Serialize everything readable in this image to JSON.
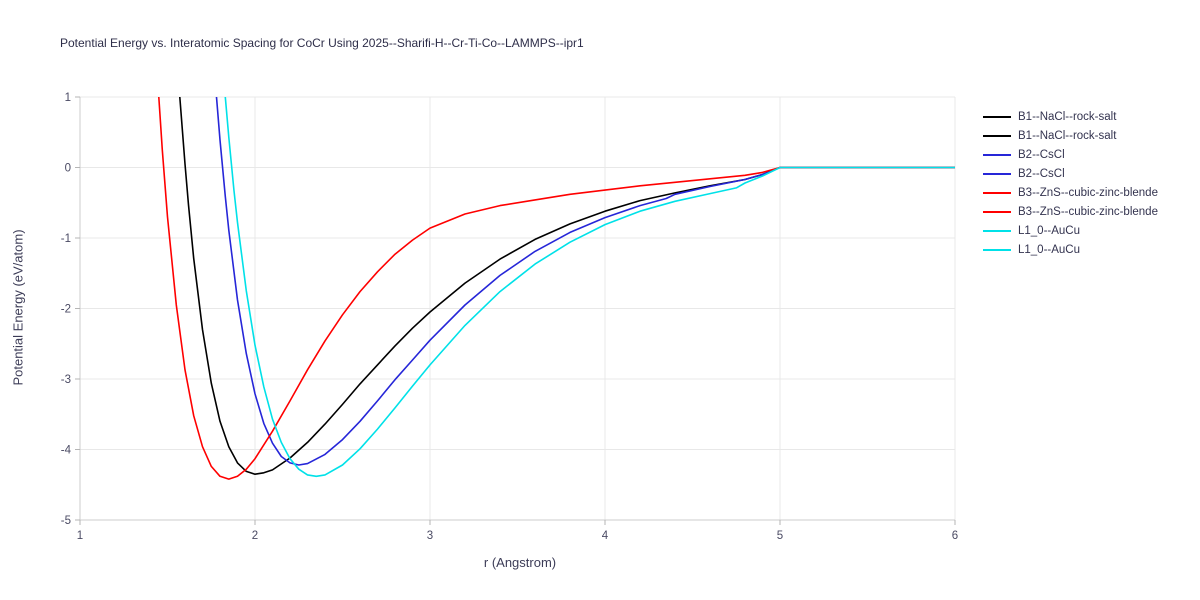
{
  "chart_data": {
    "type": "line",
    "title": "Potential Energy vs. Interatomic Spacing for CoCr Using 2025--Sharifi-H--Cr-Ti-Co--LAMMPS--ipr1",
    "xlabel": "r (Angstrom)",
    "ylabel": "Potential Energy (eV/atom)",
    "xlim": [
      1,
      6
    ],
    "ylim": [
      -5,
      1
    ],
    "xticks": [
      1,
      2,
      3,
      4,
      5,
      6
    ],
    "yticks": [
      -5,
      -4,
      -3,
      -2,
      -1,
      0,
      1
    ],
    "grid": true,
    "legend_position": "right",
    "colors": {
      "background": "#ffffff",
      "grid": "#e8e8e8",
      "axis": "#cccccc",
      "tick": "#b5b5b5",
      "tick_label": "#4a4a63",
      "title_text": "#2e2e49",
      "b1_black": "#000000",
      "b2_blue": "#2626d8",
      "b3_red": "#ff0000",
      "l10_cyan": "#00e1e8"
    },
    "series": [
      {
        "name": "B1--NaCl--rock-salt",
        "color": "#000000",
        "points": [
          [
            1.57,
            1.0
          ],
          [
            1.6,
            0.05
          ],
          [
            1.62,
            -0.53
          ],
          [
            1.65,
            -1.29
          ],
          [
            1.7,
            -2.3
          ],
          [
            1.75,
            -3.06
          ],
          [
            1.8,
            -3.6
          ],
          [
            1.85,
            -3.96
          ],
          [
            1.9,
            -4.19
          ],
          [
            1.95,
            -4.31
          ],
          [
            2.0,
            -4.35
          ],
          [
            2.05,
            -4.33
          ],
          [
            2.1,
            -4.29
          ],
          [
            2.2,
            -4.12
          ],
          [
            2.3,
            -3.9
          ],
          [
            2.4,
            -3.64
          ],
          [
            2.5,
            -3.36
          ],
          [
            2.6,
            -3.07
          ],
          [
            2.7,
            -2.8
          ],
          [
            2.8,
            -2.53
          ],
          [
            2.9,
            -2.28
          ],
          [
            3.0,
            -2.05
          ],
          [
            3.2,
            -1.64
          ],
          [
            3.4,
            -1.3
          ],
          [
            3.6,
            -1.02
          ],
          [
            3.8,
            -0.8
          ],
          [
            4.0,
            -0.62
          ],
          [
            4.2,
            -0.47
          ],
          [
            4.4,
            -0.36
          ],
          [
            4.6,
            -0.26
          ],
          [
            4.8,
            -0.17
          ],
          [
            4.9,
            -0.1
          ],
          [
            5.0,
            0.0
          ],
          [
            6.0,
            0.0
          ]
        ]
      },
      {
        "name": "B2--CsCl",
        "color": "#2626d8",
        "points": [
          [
            1.78,
            1.0
          ],
          [
            1.8,
            0.39
          ],
          [
            1.83,
            -0.41
          ],
          [
            1.85,
            -0.89
          ],
          [
            1.9,
            -1.88
          ],
          [
            1.95,
            -2.64
          ],
          [
            2.0,
            -3.21
          ],
          [
            2.05,
            -3.63
          ],
          [
            2.1,
            -3.91
          ],
          [
            2.15,
            -4.1
          ],
          [
            2.2,
            -4.19
          ],
          [
            2.25,
            -4.22
          ],
          [
            2.3,
            -4.2
          ],
          [
            2.4,
            -4.07
          ],
          [
            2.5,
            -3.86
          ],
          [
            2.6,
            -3.6
          ],
          [
            2.7,
            -3.31
          ],
          [
            2.8,
            -3.01
          ],
          [
            2.9,
            -2.73
          ],
          [
            3.0,
            -2.45
          ],
          [
            3.2,
            -1.95
          ],
          [
            3.4,
            -1.53
          ],
          [
            3.6,
            -1.19
          ],
          [
            3.8,
            -0.92
          ],
          [
            4.0,
            -0.71
          ],
          [
            4.2,
            -0.54
          ],
          [
            4.35,
            -0.44
          ],
          [
            4.4,
            -0.38
          ],
          [
            4.6,
            -0.27
          ],
          [
            4.8,
            -0.17
          ],
          [
            4.9,
            -0.1
          ],
          [
            5.0,
            0.0
          ],
          [
            6.0,
            0.0
          ]
        ]
      },
      {
        "name": "B3--ZnS--cubic-zinc-blende",
        "color": "#ff0000",
        "points": [
          [
            1.45,
            1.0
          ],
          [
            1.47,
            0.25
          ],
          [
            1.5,
            -0.7
          ],
          [
            1.55,
            -1.95
          ],
          [
            1.6,
            -2.87
          ],
          [
            1.65,
            -3.52
          ],
          [
            1.7,
            -3.96
          ],
          [
            1.75,
            -4.24
          ],
          [
            1.8,
            -4.38
          ],
          [
            1.85,
            -4.42
          ],
          [
            1.9,
            -4.38
          ],
          [
            1.95,
            -4.28
          ],
          [
            2.0,
            -4.13
          ],
          [
            2.1,
            -3.74
          ],
          [
            2.2,
            -3.31
          ],
          [
            2.3,
            -2.87
          ],
          [
            2.4,
            -2.46
          ],
          [
            2.5,
            -2.09
          ],
          [
            2.6,
            -1.76
          ],
          [
            2.7,
            -1.48
          ],
          [
            2.8,
            -1.23
          ],
          [
            2.9,
            -1.03
          ],
          [
            3.0,
            -0.86
          ],
          [
            3.2,
            -0.66
          ],
          [
            3.4,
            -0.54
          ],
          [
            3.6,
            -0.46
          ],
          [
            3.8,
            -0.38
          ],
          [
            4.0,
            -0.32
          ],
          [
            4.2,
            -0.26
          ],
          [
            4.4,
            -0.21
          ],
          [
            4.6,
            -0.16
          ],
          [
            4.8,
            -0.11
          ],
          [
            4.9,
            -0.07
          ],
          [
            5.0,
            0.0
          ],
          [
            6.0,
            0.0
          ]
        ]
      },
      {
        "name": "L1_0--AuCu",
        "color": "#00e1e8",
        "points": [
          [
            1.83,
            1.0
          ],
          [
            1.85,
            0.43
          ],
          [
            1.88,
            -0.33
          ],
          [
            1.9,
            -0.78
          ],
          [
            1.95,
            -1.75
          ],
          [
            2.0,
            -2.52
          ],
          [
            2.05,
            -3.11
          ],
          [
            2.1,
            -3.57
          ],
          [
            2.15,
            -3.9
          ],
          [
            2.2,
            -4.13
          ],
          [
            2.25,
            -4.28
          ],
          [
            2.3,
            -4.36
          ],
          [
            2.35,
            -4.38
          ],
          [
            2.4,
            -4.36
          ],
          [
            2.5,
            -4.22
          ],
          [
            2.6,
            -3.99
          ],
          [
            2.7,
            -3.71
          ],
          [
            2.8,
            -3.41
          ],
          [
            2.9,
            -3.1
          ],
          [
            3.0,
            -2.8
          ],
          [
            3.2,
            -2.24
          ],
          [
            3.4,
            -1.76
          ],
          [
            3.6,
            -1.37
          ],
          [
            3.8,
            -1.06
          ],
          [
            4.0,
            -0.81
          ],
          [
            4.2,
            -0.62
          ],
          [
            4.4,
            -0.48
          ],
          [
            4.6,
            -0.37
          ],
          [
            4.75,
            -0.29
          ],
          [
            4.8,
            -0.22
          ],
          [
            4.9,
            -0.12
          ],
          [
            5.0,
            0.0
          ],
          [
            6.0,
            0.0
          ]
        ]
      }
    ],
    "legend_entries": [
      {
        "label": "B1--NaCl--rock-salt",
        "color": "#000000"
      },
      {
        "label": "B1--NaCl--rock-salt",
        "color": "#000000"
      },
      {
        "label": "B2--CsCl",
        "color": "#2626d8"
      },
      {
        "label": "B2--CsCl",
        "color": "#2626d8"
      },
      {
        "label": "B3--ZnS--cubic-zinc-blende",
        "color": "#ff0000"
      },
      {
        "label": "B3--ZnS--cubic-zinc-blende",
        "color": "#ff0000"
      },
      {
        "label": "L1_0--AuCu",
        "color": "#00e1e8"
      },
      {
        "label": "L1_0--AuCu",
        "color": "#00e1e8"
      }
    ]
  }
}
